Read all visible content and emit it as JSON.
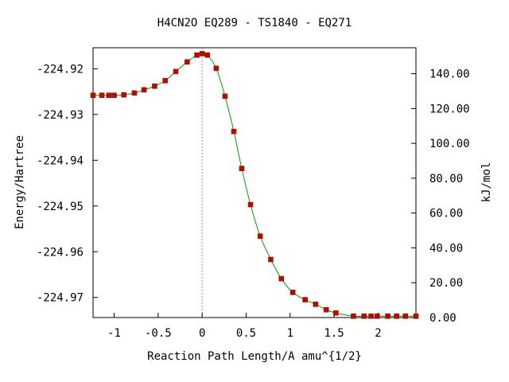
{
  "chart_data": {
    "type": "line",
    "title": "H4CN2O   EQ289 - TS1840 - EQ271",
    "xlabel": "Reaction Path Length/A amu^{1/2}",
    "ylabel": "Energy/Hartree",
    "y2label": "kJ/mol",
    "xlim": [
      -1.24,
      2.43
    ],
    "ylim": [
      -224.9744,
      -224.9154
    ],
    "y2lim": [
      0,
      154.9
    ],
    "x_ticks": [
      -1,
      -0.5,
      0,
      0.5,
      1,
      1.5,
      2
    ],
    "x_tick_labels": [
      "-1",
      "-0.5",
      "0",
      "0.5",
      "1",
      "1.5",
      "2"
    ],
    "y_ticks": [
      -224.92,
      -224.93,
      -224.94,
      -224.95,
      -224.96,
      -224.97
    ],
    "y_tick_labels": [
      "-224.92",
      "-224.93",
      "-224.94",
      "-224.95",
      "-224.96",
      "-224.97"
    ],
    "y2_ticks": [
      0,
      20,
      40,
      60,
      80,
      100,
      120,
      140
    ],
    "y2_tick_labels": [
      "0.00",
      "20.00",
      "40.00",
      "60.00",
      "80.00",
      "100.00",
      "120.00",
      "140.00"
    ],
    "ts_x": 0,
    "series": [
      {
        "color": "#00a000",
        "marker_color": "#cc0000",
        "x": [
          -1.24,
          -1.14,
          -1.06,
          -1.0,
          -0.89,
          -0.77,
          -0.66,
          -0.54,
          -0.42,
          -0.3,
          -0.17,
          -0.06,
          0.0,
          0.06,
          0.16,
          0.26,
          0.36,
          0.45,
          0.55,
          0.66,
          0.78,
          0.9,
          1.03,
          1.17,
          1.29,
          1.41,
          1.52,
          1.72,
          1.84,
          1.92,
          1.99,
          2.11,
          2.21,
          2.31,
          2.43
        ],
        "y": [
          -224.9258,
          -224.9258,
          -224.9258,
          -224.9258,
          -224.9257,
          -224.9253,
          -224.9246,
          -224.9238,
          -224.9226,
          -224.9206,
          -224.9185,
          -224.917,
          -224.9167,
          -224.917,
          -224.9199,
          -224.926,
          -224.9337,
          -224.9418,
          -224.9497,
          -224.9566,
          -224.9617,
          -224.9659,
          -224.9689,
          -224.9705,
          -224.9715,
          -224.9727,
          -224.9734,
          -224.9741,
          -224.9741,
          -224.9741,
          -224.9741,
          -224.9741,
          -224.9741,
          -224.9741,
          -224.9741
        ]
      }
    ]
  }
}
